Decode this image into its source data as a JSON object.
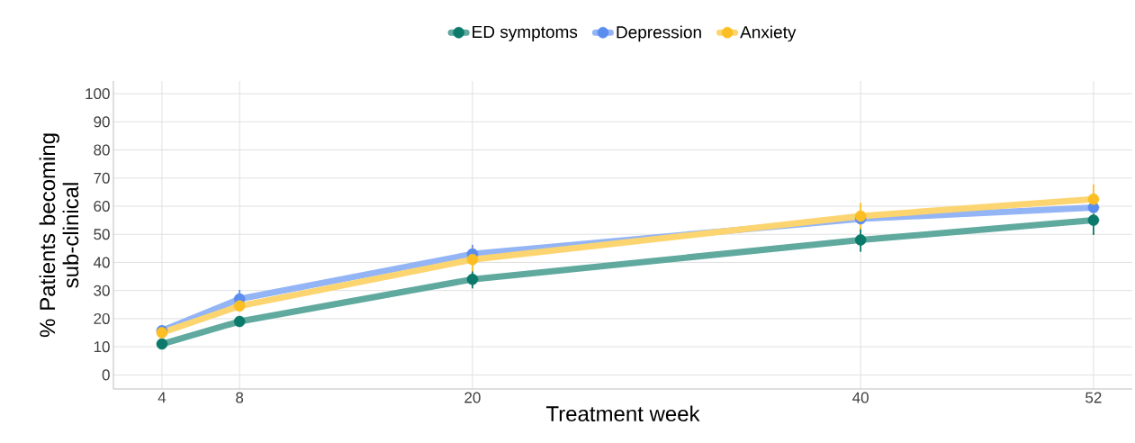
{
  "chart_data": {
    "type": "line",
    "xlabel": "Treatment week",
    "ylabel": "% Patients becoming sub-clinical",
    "x": [
      4,
      8,
      20,
      40,
      52
    ],
    "series": [
      {
        "name": "ED symptoms",
        "color": "#0b7a6b",
        "values": [
          11,
          19,
          34,
          48,
          55
        ],
        "errors": [
          1,
          1.5,
          3,
          4,
          5
        ]
      },
      {
        "name": "Depression",
        "color": "#5b8def",
        "values": [
          15.7,
          27,
          43,
          55.5,
          59.5
        ],
        "errors": [
          1.5,
          3,
          3,
          null,
          2
        ]
      },
      {
        "name": "Anxiety",
        "color": "#fbbf24",
        "values": [
          15,
          24.5,
          41,
          56.5,
          62.5
        ],
        "errors": [
          null,
          1.5,
          4,
          4.5,
          5
        ]
      }
    ],
    "xlim": [
      1.5,
      54
    ],
    "ylim": [
      -5,
      104.5
    ],
    "xticks": [
      4,
      8,
      20,
      40,
      52
    ],
    "yticks": [
      0,
      10,
      20,
      30,
      40,
      50,
      60,
      70,
      80,
      90,
      100
    ],
    "grid": true,
    "legend": "top",
    "marker": "circle",
    "line_style": "solid"
  }
}
